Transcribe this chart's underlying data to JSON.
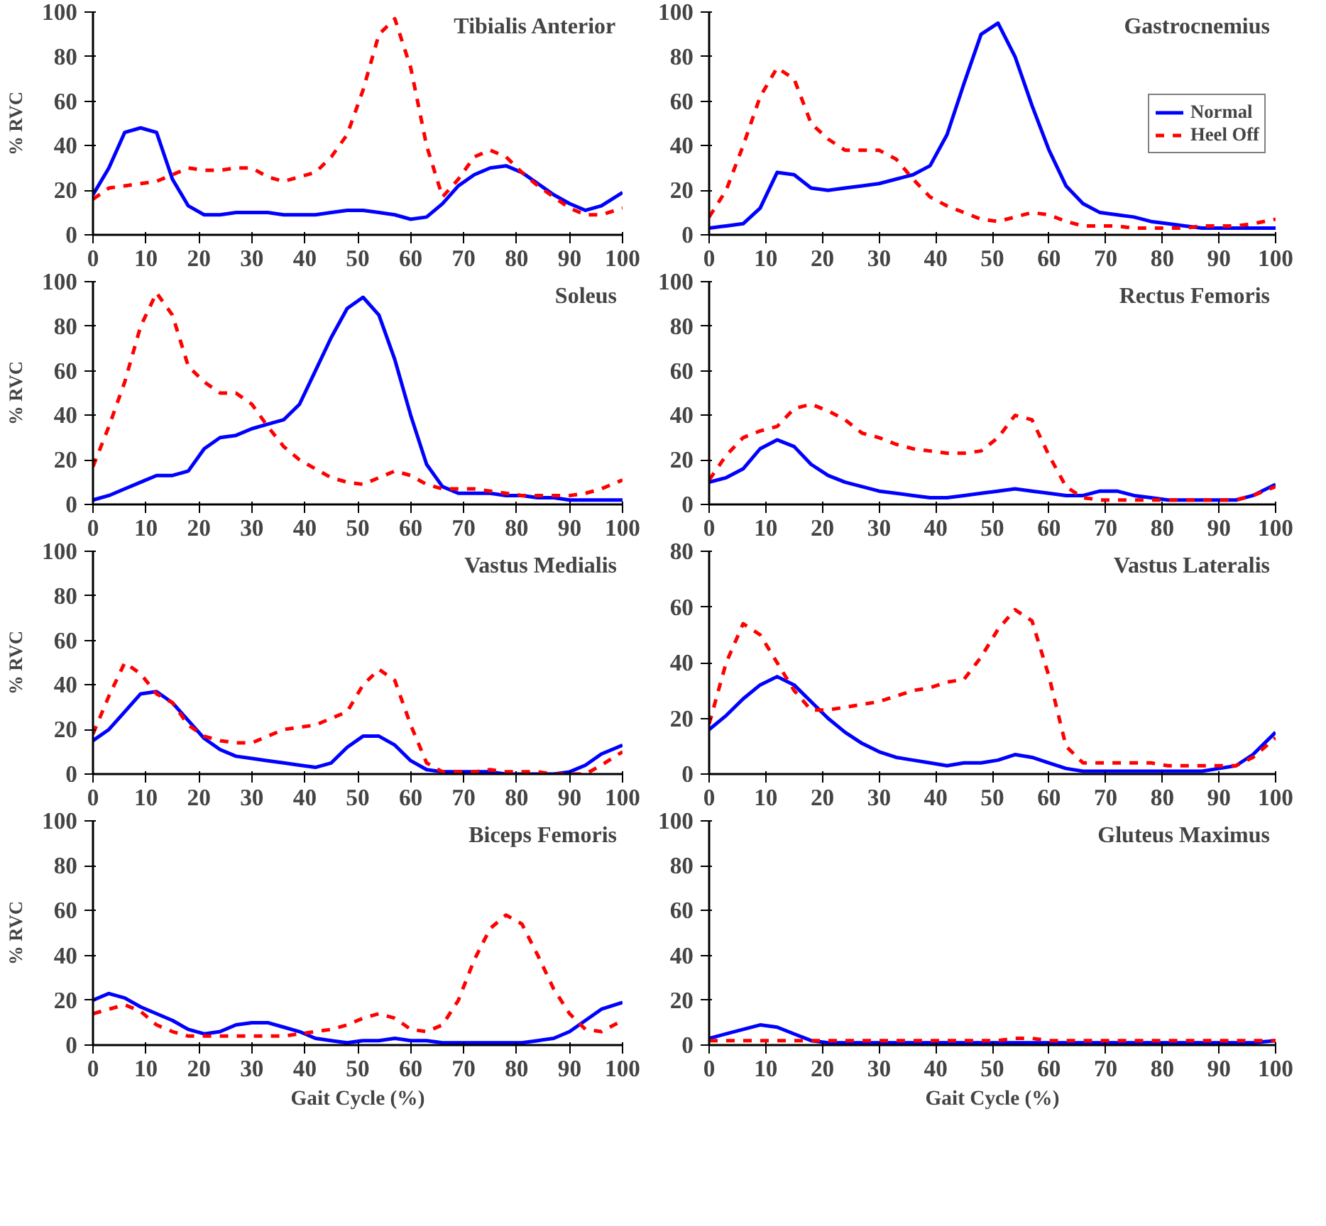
{
  "chart_data": [
    {
      "type": "line",
      "title": "Tibialis Anterior",
      "ylabel": "% RVC",
      "x": [
        0,
        3,
        6,
        9,
        12,
        15,
        18,
        21,
        24,
        27,
        30,
        33,
        36,
        39,
        42,
        45,
        48,
        51,
        54,
        57,
        60,
        63,
        66,
        69,
        72,
        75,
        78,
        81,
        84,
        87,
        90,
        93,
        96,
        100
      ],
      "xlim": [
        0,
        100
      ],
      "xticks": [
        0,
        10,
        20,
        30,
        40,
        50,
        60,
        70,
        80,
        90,
        100
      ],
      "ylim": [
        0,
        100
      ],
      "yticks": [
        0,
        20,
        40,
        60,
        80,
        100
      ],
      "grid": false,
      "legend": false,
      "series": [
        {
          "color": "#0000ff",
          "line_style": "solid",
          "values": [
            18,
            30,
            46,
            48,
            46,
            25,
            13,
            9,
            9,
            10,
            10,
            10,
            9,
            9,
            9,
            10,
            11,
            11,
            10,
            9,
            7,
            8,
            14,
            22,
            27,
            30,
            31,
            28,
            23,
            18,
            14,
            11,
            13,
            19
          ]
        },
        {
          "color": "#ff0000",
          "line_style": "dashed",
          "values": [
            16,
            21,
            22,
            23,
            24,
            27,
            30,
            29,
            29,
            30,
            30,
            26,
            24,
            26,
            28,
            35,
            45,
            65,
            90,
            97,
            75,
            40,
            17,
            25,
            35,
            38,
            35,
            28,
            22,
            17,
            12,
            9,
            9,
            12
          ]
        }
      ]
    },
    {
      "type": "line",
      "title": "Gastrocnemius",
      "x": [
        0,
        3,
        6,
        9,
        12,
        15,
        18,
        21,
        24,
        27,
        30,
        33,
        36,
        39,
        42,
        45,
        48,
        51,
        54,
        57,
        60,
        63,
        66,
        69,
        72,
        75,
        78,
        81,
        84,
        87,
        90,
        93,
        96,
        100
      ],
      "xlim": [
        0,
        100
      ],
      "xticks": [
        0,
        10,
        20,
        30,
        40,
        50,
        60,
        70,
        80,
        90,
        100
      ],
      "ylim": [
        0,
        100
      ],
      "yticks": [
        0,
        20,
        40,
        60,
        80,
        100
      ],
      "grid": false,
      "legend": "right",
      "series": [
        {
          "name": "Normal",
          "color": "#0000ff",
          "line_style": "solid",
          "values": [
            3,
            4,
            5,
            12,
            28,
            27,
            21,
            20,
            21,
            22,
            23,
            25,
            27,
            31,
            45,
            68,
            90,
            95,
            80,
            58,
            38,
            22,
            14,
            10,
            9,
            8,
            6,
            5,
            4,
            3,
            3,
            3,
            3,
            3
          ]
        },
        {
          "name": "Heel Off",
          "color": "#ff0000",
          "line_style": "dashed",
          "values": [
            8,
            20,
            40,
            62,
            75,
            70,
            50,
            43,
            38,
            38,
            38,
            34,
            25,
            17,
            13,
            10,
            7,
            6,
            8,
            10,
            9,
            6,
            4,
            4,
            4,
            3,
            3,
            3,
            3,
            4,
            4,
            4,
            5,
            7
          ]
        }
      ]
    },
    {
      "type": "line",
      "title": "Soleus",
      "ylabel": "% RVC",
      "x": [
        0,
        3,
        6,
        9,
        12,
        15,
        18,
        21,
        24,
        27,
        30,
        33,
        36,
        39,
        42,
        45,
        48,
        51,
        54,
        57,
        60,
        63,
        66,
        69,
        72,
        75,
        78,
        81,
        84,
        87,
        90,
        93,
        96,
        100
      ],
      "xlim": [
        0,
        100
      ],
      "xticks": [
        0,
        10,
        20,
        30,
        40,
        50,
        60,
        70,
        80,
        90,
        100
      ],
      "ylim": [
        0,
        100
      ],
      "yticks": [
        0,
        20,
        40,
        60,
        80,
        100
      ],
      "grid": false,
      "legend": false,
      "series": [
        {
          "color": "#0000ff",
          "line_style": "solid",
          "values": [
            2,
            4,
            7,
            10,
            13,
            13,
            15,
            25,
            30,
            31,
            34,
            36,
            38,
            45,
            60,
            75,
            88,
            93,
            85,
            65,
            40,
            18,
            8,
            5,
            5,
            5,
            4,
            4,
            3,
            3,
            2,
            2,
            2,
            2
          ]
        },
        {
          "color": "#ff0000",
          "line_style": "dashed",
          "values": [
            17,
            35,
            55,
            80,
            95,
            85,
            62,
            55,
            50,
            50,
            45,
            35,
            26,
            20,
            16,
            12,
            10,
            9,
            12,
            15,
            13,
            9,
            7,
            7,
            7,
            6,
            5,
            4,
            4,
            4,
            4,
            5,
            7,
            11
          ]
        }
      ]
    },
    {
      "type": "line",
      "title": "Rectus Femoris",
      "x": [
        0,
        3,
        6,
        9,
        12,
        15,
        18,
        21,
        24,
        27,
        30,
        33,
        36,
        39,
        42,
        45,
        48,
        51,
        54,
        57,
        60,
        63,
        66,
        69,
        72,
        75,
        78,
        81,
        84,
        87,
        90,
        93,
        96,
        100
      ],
      "xlim": [
        0,
        100
      ],
      "xticks": [
        0,
        10,
        20,
        30,
        40,
        50,
        60,
        70,
        80,
        90,
        100
      ],
      "ylim": [
        0,
        100
      ],
      "yticks": [
        0,
        20,
        40,
        60,
        80,
        100
      ],
      "grid": false,
      "legend": false,
      "series": [
        {
          "color": "#0000ff",
          "line_style": "solid",
          "values": [
            10,
            12,
            16,
            25,
            29,
            26,
            18,
            13,
            10,
            8,
            6,
            5,
            4,
            3,
            3,
            4,
            5,
            6,
            7,
            6,
            5,
            4,
            4,
            6,
            6,
            4,
            3,
            2,
            2,
            2,
            2,
            2,
            4,
            9
          ]
        },
        {
          "color": "#ff0000",
          "line_style": "dashed",
          "values": [
            11,
            22,
            30,
            33,
            35,
            43,
            45,
            42,
            38,
            32,
            30,
            27,
            25,
            24,
            23,
            23,
            24,
            30,
            40,
            38,
            22,
            8,
            3,
            2,
            2,
            2,
            2,
            2,
            2,
            2,
            2,
            2,
            4,
            8
          ]
        }
      ]
    },
    {
      "type": "line",
      "title": "Vastus Medialis",
      "ylabel": "% RVC",
      "x": [
        0,
        3,
        6,
        9,
        12,
        15,
        18,
        21,
        24,
        27,
        30,
        33,
        36,
        39,
        42,
        45,
        48,
        51,
        54,
        57,
        60,
        63,
        66,
        69,
        72,
        75,
        78,
        81,
        84,
        87,
        90,
        93,
        96,
        100
      ],
      "xlim": [
        0,
        100
      ],
      "xticks": [
        0,
        10,
        20,
        30,
        40,
        50,
        60,
        70,
        80,
        90,
        100
      ],
      "ylim": [
        0,
        100
      ],
      "yticks": [
        0,
        20,
        40,
        60,
        80,
        100
      ],
      "grid": false,
      "legend": false,
      "series": [
        {
          "color": "#0000ff",
          "line_style": "solid",
          "values": [
            15,
            20,
            28,
            36,
            37,
            32,
            24,
            16,
            11,
            8,
            7,
            6,
            5,
            4,
            3,
            5,
            12,
            17,
            17,
            13,
            6,
            2,
            1,
            1,
            1,
            1,
            0,
            0,
            0,
            0,
            1,
            4,
            9,
            13
          ]
        },
        {
          "color": "#ff0000",
          "line_style": "dashed",
          "values": [
            18,
            35,
            50,
            45,
            36,
            32,
            22,
            17,
            15,
            14,
            14,
            17,
            20,
            21,
            22,
            25,
            28,
            40,
            47,
            42,
            22,
            5,
            1,
            1,
            1,
            2,
            1,
            1,
            1,
            0,
            0,
            0,
            4,
            10
          ]
        }
      ]
    },
    {
      "type": "line",
      "title": "Vastus Lateralis",
      "x": [
        0,
        3,
        6,
        9,
        12,
        15,
        18,
        21,
        24,
        27,
        30,
        33,
        36,
        39,
        42,
        45,
        48,
        51,
        54,
        57,
        60,
        63,
        66,
        69,
        72,
        75,
        78,
        81,
        84,
        87,
        90,
        93,
        96,
        100
      ],
      "xlim": [
        0,
        100
      ],
      "xticks": [
        0,
        10,
        20,
        30,
        40,
        50,
        60,
        70,
        80,
        90,
        100
      ],
      "ylim": [
        0,
        80
      ],
      "yticks": [
        0,
        20,
        40,
        60,
        80
      ],
      "grid": false,
      "legend": false,
      "series": [
        {
          "color": "#0000ff",
          "line_style": "solid",
          "values": [
            16,
            21,
            27,
            32,
            35,
            32,
            26,
            20,
            15,
            11,
            8,
            6,
            5,
            4,
            3,
            4,
            4,
            5,
            7,
            6,
            4,
            2,
            1,
            1,
            1,
            1,
            1,
            1,
            1,
            1,
            2,
            3,
            7,
            15
          ]
        },
        {
          "color": "#ff0000",
          "line_style": "dashed",
          "values": [
            18,
            40,
            54,
            50,
            40,
            30,
            23,
            23,
            24,
            25,
            26,
            28,
            30,
            31,
            33,
            34,
            42,
            52,
            59,
            55,
            35,
            10,
            4,
            4,
            4,
            4,
            4,
            3,
            3,
            3,
            3,
            3,
            6,
            13
          ]
        }
      ]
    },
    {
      "type": "line",
      "title": "Biceps Femoris",
      "ylabel": "% RVC",
      "xlabel": "Gait Cycle (%)",
      "x": [
        0,
        3,
        6,
        9,
        12,
        15,
        18,
        21,
        24,
        27,
        30,
        33,
        36,
        39,
        42,
        45,
        48,
        51,
        54,
        57,
        60,
        63,
        66,
        69,
        72,
        75,
        78,
        81,
        84,
        87,
        90,
        93,
        96,
        100
      ],
      "xlim": [
        0,
        100
      ],
      "xticks": [
        0,
        10,
        20,
        30,
        40,
        50,
        60,
        70,
        80,
        90,
        100
      ],
      "ylim": [
        0,
        100
      ],
      "yticks": [
        0,
        20,
        40,
        60,
        80,
        100
      ],
      "grid": false,
      "legend": false,
      "series": [
        {
          "color": "#0000ff",
          "line_style": "solid",
          "values": [
            20,
            23,
            21,
            17,
            14,
            11,
            7,
            5,
            6,
            9,
            10,
            10,
            8,
            6,
            3,
            2,
            1,
            2,
            2,
            3,
            2,
            2,
            1,
            1,
            1,
            1,
            1,
            1,
            2,
            3,
            6,
            11,
            16,
            19
          ]
        },
        {
          "color": "#ff0000",
          "line_style": "dashed",
          "values": [
            14,
            16,
            18,
            15,
            9,
            6,
            4,
            4,
            4,
            4,
            4,
            4,
            4,
            5,
            6,
            7,
            9,
            12,
            14,
            12,
            7,
            6,
            9,
            20,
            38,
            52,
            58,
            54,
            40,
            25,
            14,
            7,
            6,
            11
          ]
        }
      ]
    },
    {
      "type": "line",
      "title": "Gluteus Maximus",
      "xlabel": "Gait Cycle (%)",
      "x": [
        0,
        3,
        6,
        9,
        12,
        15,
        18,
        21,
        24,
        27,
        30,
        33,
        36,
        39,
        42,
        45,
        48,
        51,
        54,
        57,
        60,
        63,
        66,
        69,
        72,
        75,
        78,
        81,
        84,
        87,
        90,
        93,
        96,
        100
      ],
      "xlim": [
        0,
        100
      ],
      "xticks": [
        0,
        10,
        20,
        30,
        40,
        50,
        60,
        70,
        80,
        90,
        100
      ],
      "ylim": [
        0,
        100
      ],
      "yticks": [
        0,
        20,
        40,
        60,
        80,
        100
      ],
      "grid": false,
      "legend": false,
      "series": [
        {
          "color": "#0000ff",
          "line_style": "solid",
          "values": [
            3,
            5,
            7,
            9,
            8,
            5,
            2,
            1,
            1,
            1,
            1,
            1,
            1,
            1,
            1,
            1,
            1,
            1,
            1,
            1,
            1,
            1,
            1,
            1,
            1,
            1,
            1,
            1,
            1,
            1,
            1,
            1,
            1,
            2
          ]
        },
        {
          "color": "#ff0000",
          "line_style": "dashed",
          "values": [
            2,
            2,
            2,
            2,
            2,
            2,
            2,
            2,
            2,
            2,
            2,
            2,
            2,
            2,
            2,
            2,
            2,
            2,
            3,
            3,
            2,
            2,
            2,
            2,
            2,
            2,
            2,
            2,
            2,
            2,
            2,
            2,
            2,
            2
          ]
        }
      ]
    }
  ]
}
